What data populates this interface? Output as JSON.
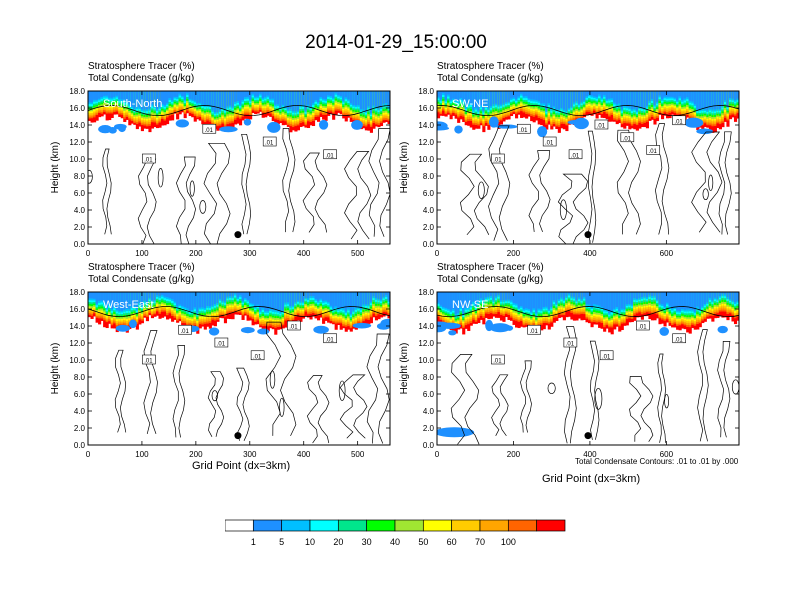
{
  "title": "2014-01-29_15:00:00",
  "chart_data": [
    {
      "type": "heatmap",
      "overlay": "contour",
      "panel_label": "South-North",
      "title_lines": [
        "Stratosphere Tracer   (%)",
        "Total Condensate   (g/kg)"
      ],
      "ylabel": "Height (km)",
      "xlabel": "",
      "xlim": [
        0,
        560
      ],
      "ylim": [
        0,
        18
      ],
      "xticks": [
        0,
        100,
        200,
        300,
        400,
        500
      ],
      "yticks": [
        0.0,
        2.0,
        4.0,
        6.0,
        8.0,
        10.0,
        12.0,
        14.0,
        16.0,
        18.0
      ],
      "ytick_labels": [
        "0.0",
        "2.0",
        "4.0",
        "6.0",
        "8.0",
        "10.0",
        "12.0",
        "14.0",
        "16.0",
        "18.0"
      ],
      "contour_labels": [
        ".01",
        ".01",
        ".01",
        ".01"
      ],
      "marker_x": 278
    },
    {
      "type": "heatmap",
      "overlay": "contour",
      "panel_label": "SW-NE",
      "title_lines": [
        "Stratosphere Tracer   (%)",
        "Total Condensate   (g/kg)"
      ],
      "ylabel": "Height (km)",
      "xlabel": "",
      "xlim": [
        0,
        790
      ],
      "ylim": [
        0,
        18
      ],
      "xticks": [
        0,
        200,
        400,
        600
      ],
      "yticks": [
        0.0,
        2.0,
        4.0,
        6.0,
        8.0,
        10.0,
        12.0,
        14.0,
        16.0,
        18.0
      ],
      "ytick_labels": [
        "0.0",
        "2.0",
        "4.0",
        "6.0",
        "8.0",
        "10.0",
        "12.0",
        "14.0",
        "16.0",
        "18.0"
      ],
      "contour_labels": [
        ".01",
        ".01",
        ".01",
        ".01",
        ".01",
        ".01",
        ".01",
        ".01"
      ],
      "marker_x": 395
    },
    {
      "type": "heatmap",
      "overlay": "contour",
      "panel_label": "West-East",
      "title_lines": [
        "Stratosphere Tracer   (%)",
        "Total Condensate   (g/kg)"
      ],
      "ylabel": "Height (km)",
      "xlabel": "Grid Point (dx=3km)",
      "xlim": [
        0,
        560
      ],
      "ylim": [
        0,
        18
      ],
      "xticks": [
        0,
        100,
        200,
        300,
        400,
        500
      ],
      "yticks": [
        0.0,
        2.0,
        4.0,
        6.0,
        8.0,
        10.0,
        12.0,
        14.0,
        16.0,
        18.0
      ],
      "ytick_labels": [
        "0.0",
        "2.0",
        "4.0",
        "6.0",
        "8.0",
        "10.0",
        "12.0",
        "14.0",
        "16.0",
        "18.0"
      ],
      "contour_labels": [
        ".01",
        ".01",
        ".01",
        ".01",
        ".01",
        ".01"
      ],
      "marker_x": 278
    },
    {
      "type": "heatmap",
      "overlay": "contour",
      "panel_label": "NW-SE",
      "title_lines": [
        "Stratosphere Tracer   (%)",
        "Total Condensate   (g/kg)"
      ],
      "ylabel": "Height (km)",
      "xlabel": "Grid Point (dx=3km)",
      "xlim": [
        0,
        790
      ],
      "ylim": [
        0,
        18
      ],
      "xticks": [
        0,
        200,
        400,
        600
      ],
      "yticks": [
        0.0,
        2.0,
        4.0,
        6.0,
        8.0,
        10.0,
        12.0,
        14.0,
        16.0,
        18.0
      ],
      "ytick_labels": [
        "0.0",
        "2.0",
        "4.0",
        "6.0",
        "8.0",
        "10.0",
        "12.0",
        "14.0",
        "16.0",
        "18.0"
      ],
      "contour_labels": [
        ".01",
        ".01",
        ".01",
        ".01",
        ".01",
        ".01"
      ],
      "marker_x": 395,
      "footnote": "Total Condensate Contours: .01 to .01 by .000"
    }
  ],
  "colorbar": {
    "labels": [
      "1",
      "5",
      "10",
      "20",
      "30",
      "40",
      "50",
      "60",
      "70",
      "100"
    ],
    "colors": [
      "#ffffff",
      "#1e90ff",
      "#00bfff",
      "#00ffff",
      "#00e68c",
      "#00ff00",
      "#a0e632",
      "#ffff00",
      "#ffcc00",
      "#ffa500",
      "#ff6400",
      "#ff0000"
    ]
  }
}
